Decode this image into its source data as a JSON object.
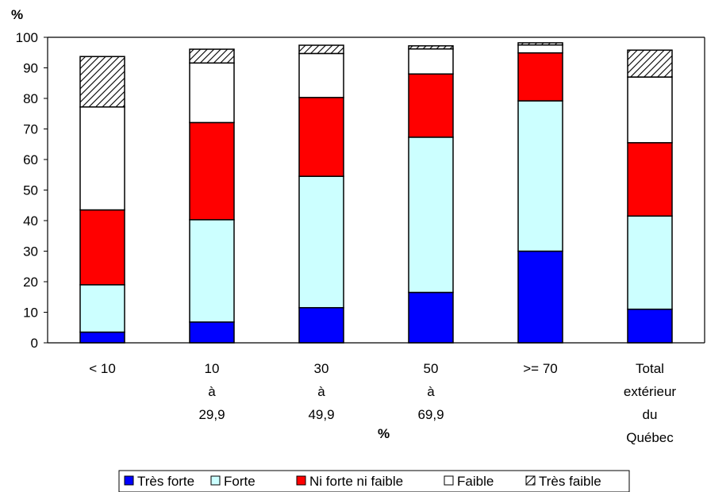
{
  "chart_data": {
    "type": "bar",
    "stacked": true,
    "ylabel": "%",
    "xlabel": "%",
    "ylim": [
      0,
      100
    ],
    "yticks": [
      0,
      10,
      20,
      30,
      40,
      50,
      60,
      70,
      80,
      90,
      100
    ],
    "ytick_labels": [
      "0",
      "10",
      "20",
      "30",
      "40",
      "50",
      "60",
      "70",
      "80",
      "90",
      "100"
    ],
    "grid": false,
    "legend_position": "bottom",
    "categories": [
      [
        "< 10"
      ],
      [
        "10",
        "à",
        "29,9"
      ],
      [
        "30",
        "à",
        "49,9"
      ],
      [
        "50",
        "à",
        "69,9"
      ],
      [
        ">= 70"
      ],
      [
        "Total",
        "extérieur",
        "du",
        "Québec"
      ]
    ],
    "series": [
      {
        "name": "Très forte",
        "color": "#0000ff",
        "pattern": "solid",
        "values": [
          3.5,
          6.8,
          11.5,
          16.5,
          30.0,
          11.0
        ]
      },
      {
        "name": "Forte",
        "color": "#ccffff",
        "pattern": "solid",
        "values": [
          15.5,
          33.5,
          43.0,
          50.8,
          49.2,
          30.5
        ]
      },
      {
        "name": "Ni forte ni faible",
        "color": "#ff0000",
        "pattern": "solid",
        "values": [
          24.5,
          31.8,
          25.8,
          20.7,
          15.7,
          24.0
        ]
      },
      {
        "name": "Faible",
        "color": "#ffffff",
        "pattern": "solid",
        "values": [
          33.7,
          19.5,
          14.4,
          8.2,
          2.6,
          21.5
        ]
      },
      {
        "name": "Très faible",
        "color": "#ffffff",
        "pattern": "hatch",
        "values": [
          16.5,
          4.5,
          2.7,
          1.0,
          0.7,
          8.8
        ]
      }
    ]
  }
}
